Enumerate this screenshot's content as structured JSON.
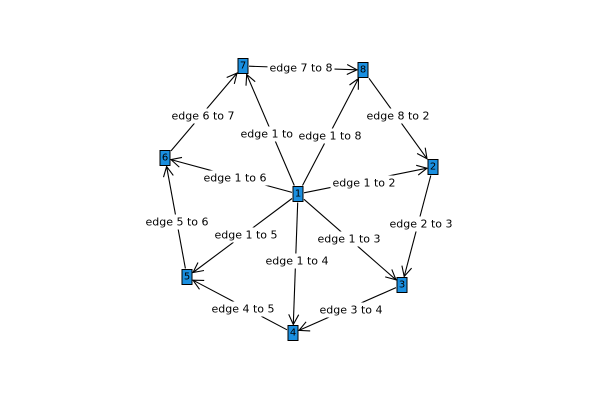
{
  "colors": {
    "node_fill": "#1a8fe0",
    "edge": "#000000",
    "background": "#ffffff"
  },
  "nodes": [
    {
      "id": "1",
      "label": "1"
    },
    {
      "id": "2",
      "label": "2"
    },
    {
      "id": "3",
      "label": "3"
    },
    {
      "id": "4",
      "label": "4"
    },
    {
      "id": "5",
      "label": "5"
    },
    {
      "id": "6",
      "label": "6"
    },
    {
      "id": "7",
      "label": "7"
    },
    {
      "id": "8",
      "label": "8"
    }
  ],
  "edges": [
    {
      "from": "1",
      "to": "2",
      "label": "edge 1 to 2"
    },
    {
      "from": "1",
      "to": "3",
      "label": "edge 1 to 3"
    },
    {
      "from": "1",
      "to": "4",
      "label": "edge 1 to 4"
    },
    {
      "from": "1",
      "to": "5",
      "label": "edge 1 to 5"
    },
    {
      "from": "1",
      "to": "6",
      "label": "edge 1 to 6"
    },
    {
      "from": "1",
      "to": "7",
      "label": "edge 1 to 7"
    },
    {
      "from": "1",
      "to": "8",
      "label": "edge 1 to 8"
    },
    {
      "from": "2",
      "to": "3",
      "label": "edge 2 to 3"
    },
    {
      "from": "3",
      "to": "4",
      "label": "edge 3 to 4"
    },
    {
      "from": "4",
      "to": "5",
      "label": "edge 4 to 5"
    },
    {
      "from": "5",
      "to": "6",
      "label": "edge 5 to 6"
    },
    {
      "from": "6",
      "to": "7",
      "label": "edge 6 to 7"
    },
    {
      "from": "7",
      "to": "8",
      "label": "edge 7 to 8"
    },
    {
      "from": "8",
      "to": "2",
      "label": "edge 8 to 2"
    }
  ]
}
